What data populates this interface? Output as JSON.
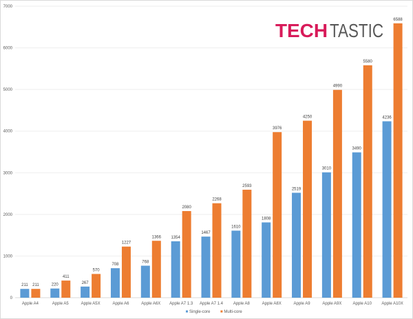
{
  "logo": {
    "part1": "TECH",
    "part2": "TASTIC",
    "color1": "#d81b5a",
    "color2": "#595959"
  },
  "chart_data": {
    "type": "bar",
    "title": "",
    "xlabel": "",
    "ylabel": "",
    "ylim": [
      0,
      7000
    ],
    "yticks": [
      0,
      1000,
      2000,
      3000,
      4000,
      5000,
      6000,
      7000
    ],
    "grid": true,
    "legend": "bottom",
    "categories": [
      "Apple A4",
      "Apple A5",
      "Apple A5X",
      "Apple A6",
      "Apple A6X",
      "Apple A7 1.3",
      "Apple A7 1.4",
      "Apple A8",
      "Apple A8X",
      "Apple A9",
      "Apple A9X",
      "Apple A10",
      "Apple A10X"
    ],
    "series": [
      {
        "name": "Single-core",
        "color": "#5b9bd5",
        "values": [
          211,
          220,
          267,
          708,
          768,
          1354,
          1467,
          1610,
          1808,
          2519,
          3010,
          3490,
          4236
        ]
      },
      {
        "name": "Multi-core",
        "color": "#ed7d31",
        "values": [
          211,
          411,
          570,
          1227,
          1366,
          2080,
          2268,
          2593,
          3976,
          4250,
          4990,
          5580,
          6588
        ]
      }
    ]
  }
}
